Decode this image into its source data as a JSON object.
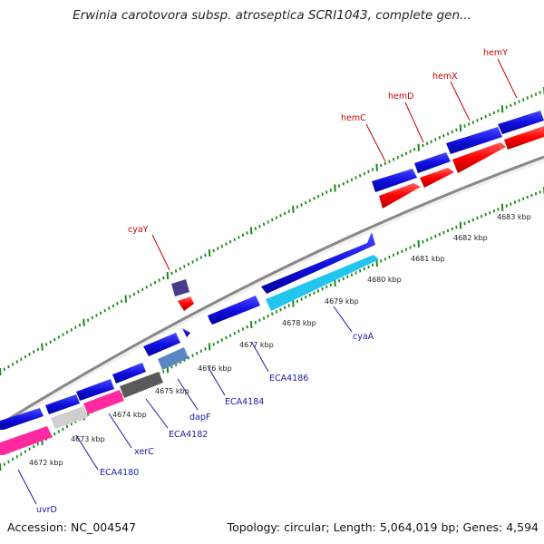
{
  "title": "Erwinia carotovora subsp. atroseptica SCRI1043, complete gen...",
  "footer": {
    "accession": "Accession: NC_004547",
    "summary": "Topology: circular; Length: 5,064,019 bp; Genes: 4,594"
  },
  "scale_labels": [
    "4672 kbp",
    "4673 kbp",
    "4674 kbp",
    "4675 kbp",
    "4676 kbp",
    "4677 kbp",
    "4678 kbp",
    "4679 kbp",
    "4680 kbp",
    "4681 kbp",
    "4682 kbp",
    "4683 kbp"
  ],
  "gene_labels_top": [
    "cyaY",
    "hemC",
    "hemD",
    "hemX",
    "hemY"
  ],
  "gene_labels_bottom": [
    "uvrD",
    "ECA4180",
    "xerC",
    "ECA4182",
    "dapF",
    "ECA4184",
    "ECA4186",
    "cyaA"
  ],
  "colors": {
    "gene_blue": "#1010e0",
    "cds_red": "#ff0000",
    "magenta": "#ff2aa0",
    "cyan": "#22c4f0",
    "tick_green": "#1a8a1a",
    "backbone_gray": "#8c8c8c"
  }
}
